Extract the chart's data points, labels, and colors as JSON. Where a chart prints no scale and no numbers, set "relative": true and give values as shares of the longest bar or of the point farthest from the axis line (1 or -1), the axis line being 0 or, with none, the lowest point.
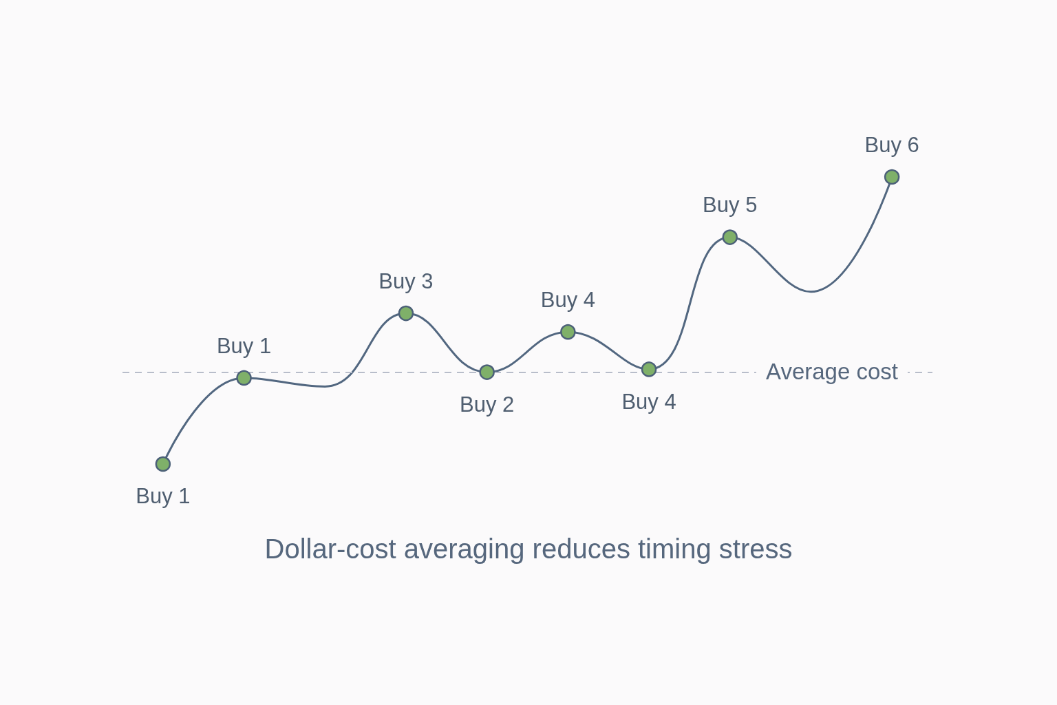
{
  "chart_data": {
    "type": "line",
    "title": "Dollar-cost averaging reduces timing stress",
    "relative": true,
    "categories": [
      "Buy 1",
      "Buy 1",
      null,
      "Buy 3",
      "Buy 2",
      "Buy 4",
      "Buy 4",
      "Buy 5",
      null,
      "Buy 6"
    ],
    "series": [
      {
        "type": "line",
        "color": "#526780",
        "marker": "none",
        "values": [
          0,
          0.3,
          0.27,
          0.525,
          0.32,
          0.46,
          0.33,
          0.79,
          0.6,
          1
        ]
      },
      {
        "type": "scatter",
        "color": "#7fb069",
        "marker": "circle",
        "values": [
          0,
          0.3,
          null,
          0.525,
          0.32,
          0.46,
          0.33,
          0.79,
          null,
          1
        ]
      }
    ],
    "ref_lines": [
      {
        "axis": "y",
        "value": 0.32,
        "label": "Average cost",
        "line_style": "dashed",
        "color": "#b8bdca"
      }
    ]
  }
}
